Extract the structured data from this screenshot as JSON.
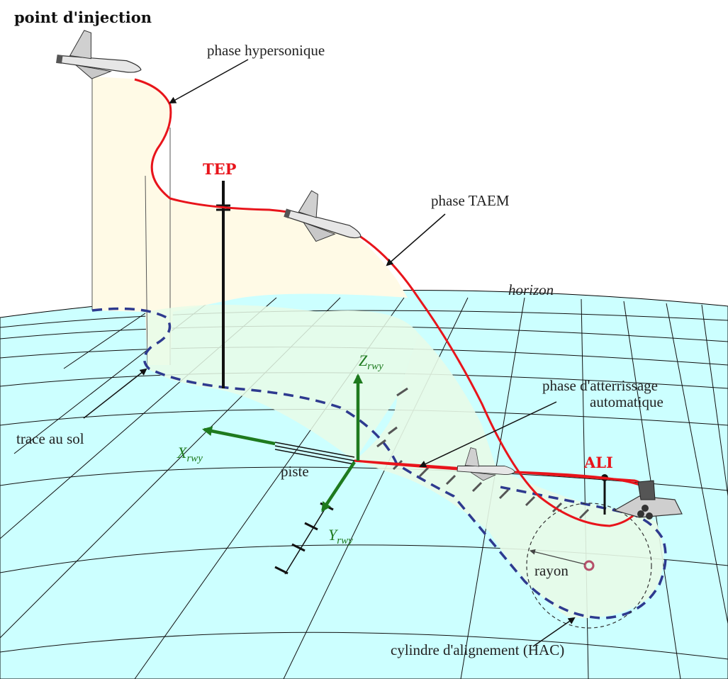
{
  "title": "point d'injection",
  "labels": {
    "hypersonic": "phase hypersonique",
    "taem": "phase TAEM",
    "tep": "TEP",
    "horizon": "horizon",
    "landing_line1": "phase d'atterrissage",
    "landing_line2": "automatique",
    "ground_track": "trace au sol",
    "runway": "piste",
    "ali": "ALI",
    "radius": "rayon",
    "hac": "cylindre d'alignement (HAC)"
  },
  "axes": {
    "x": {
      "main": "X",
      "sub": "rwy"
    },
    "y": {
      "main": "Y",
      "sub": "rwy"
    },
    "z": {
      "main": "Z",
      "sub": "rwy"
    }
  },
  "colors": {
    "ground": "#ccffff",
    "trajectory": "#e8141b",
    "ground_track": "#2e3a8f",
    "axes": "#1e7a1e",
    "curtain": "#fffae6",
    "hac_fill": "#e8fbe8",
    "key_point_labels": "#e8141b"
  }
}
